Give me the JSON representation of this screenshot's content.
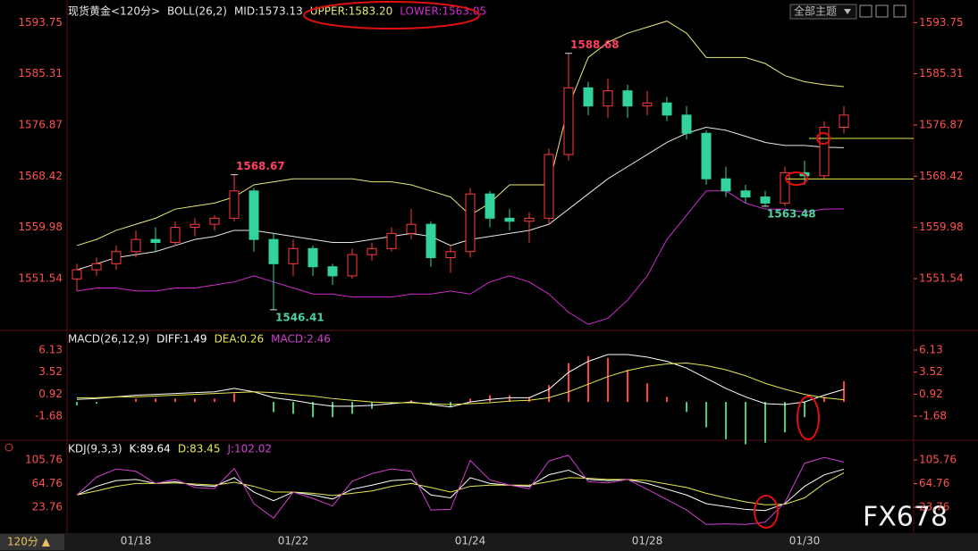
{
  "chart_data": [
    {
      "type": "candlestick",
      "title": "现货黄金<120分>",
      "indicator": "BOLL(26,2)",
      "categories": [
        null,
        null,
        null,
        "01/18",
        null,
        null,
        null,
        null,
        null,
        null,
        null,
        "01/22",
        null,
        null,
        null,
        null,
        null,
        null,
        null,
        null,
        "01/24",
        null,
        null,
        null,
        null,
        null,
        null,
        null,
        null,
        "01/28",
        null,
        null,
        null,
        null,
        null,
        null,
        null,
        "01/30",
        null,
        null
      ],
      "open": [
        1551.5,
        1553,
        1554,
        1556,
        1558,
        1557.5,
        1560,
        1560.5,
        1561.5,
        1566,
        1558,
        1554,
        1556.5,
        1553.5,
        1552,
        1555.5,
        1556.5,
        1559,
        1560.5,
        1555,
        1556,
        1565.5,
        1561.5,
        1561,
        1561.5,
        1572,
        1583,
        1580,
        1582.5,
        1580,
        1580.5,
        1578.5,
        1575.5,
        1568,
        1566,
        1565,
        1564,
        1569,
        1568.5,
        1576.5
      ],
      "high": [
        1554,
        1555,
        1557,
        1559.5,
        1560,
        1561,
        1561.5,
        1562,
        1568.67,
        1566.5,
        1559,
        1558,
        1557,
        1554,
        1556.5,
        1557.5,
        1560,
        1563,
        1561,
        1557,
        1566.5,
        1566,
        1563,
        1562.5,
        1573,
        1588.68,
        1584,
        1584.5,
        1583.5,
        1582.5,
        1581.5,
        1580,
        1576,
        1570,
        1567,
        1566,
        1570,
        1571,
        1577.5,
        1580
      ],
      "low": [
        1549.5,
        1552,
        1553,
        1555,
        1556,
        1557,
        1558.5,
        1559.5,
        1561,
        1556,
        1546.41,
        1552,
        1552,
        1550.5,
        1551.5,
        1554.5,
        1556,
        1558,
        1553.5,
        1552.5,
        1555,
        1560,
        1559.5,
        1557.5,
        1560.5,
        1571,
        1578.5,
        1578,
        1578,
        1578.5,
        1577.5,
        1574.5,
        1567,
        1565,
        1564,
        1563.48,
        1563.5,
        1567,
        1568,
        1575.5
      ],
      "close": [
        1553,
        1554,
        1556,
        1558,
        1557.5,
        1560,
        1560.5,
        1561.5,
        1566,
        1558,
        1554,
        1556.5,
        1553.5,
        1552,
        1555.5,
        1556.5,
        1559,
        1560.5,
        1555,
        1556,
        1565.5,
        1561.5,
        1561,
        1561.5,
        1572,
        1583,
        1580,
        1582.5,
        1580,
        1580.5,
        1578.5,
        1575.5,
        1568,
        1566,
        1565,
        1564,
        1569,
        1568.5,
        1576.5,
        1578.5
      ],
      "up_color": "#ff3c3c",
      "down_color": "#33d3a0",
      "series": [
        {
          "name": "MID:1573.13",
          "color": "#e8e8e8",
          "values": [
            1553,
            1554,
            1555,
            1555.5,
            1556,
            1557,
            1558,
            1558.5,
            1559.5,
            1559.5,
            1559,
            1558.5,
            1558,
            1557.5,
            1557.5,
            1558,
            1558.5,
            1559,
            1558.5,
            1557,
            1558,
            1558.5,
            1559,
            1559.5,
            1560.5,
            1563,
            1565.5,
            1568,
            1570,
            1572,
            1574,
            1575.5,
            1576.5,
            1576,
            1575,
            1574,
            1573.5,
            1573.5,
            1573.2,
            1573.13
          ]
        },
        {
          "name": "UPPER:1583.20",
          "color": "#e8e878",
          "values": [
            1557,
            1558,
            1559.5,
            1560.5,
            1561.5,
            1563,
            1563.5,
            1564,
            1565,
            1567,
            1567.5,
            1568,
            1568,
            1568,
            1568,
            1567.5,
            1567.5,
            1567,
            1566,
            1565,
            1562,
            1564,
            1567,
            1567,
            1567,
            1580,
            1588,
            1590.5,
            1592,
            1593,
            1594,
            1592,
            1588,
            1588,
            1588,
            1587,
            1585,
            1584,
            1583.5,
            1583.2
          ]
        },
        {
          "name": "LOWER:1563.05",
          "color": "#d02cd0",
          "values": [
            1549.5,
            1550,
            1550,
            1549.5,
            1549.5,
            1550,
            1550,
            1550.5,
            1551,
            1552,
            1551,
            1550,
            1549,
            1549,
            1548.5,
            1548.5,
            1548.5,
            1549,
            1549,
            1549.5,
            1549,
            1551,
            1552,
            1551,
            1549,
            1546,
            1544,
            1545,
            1548,
            1552,
            1558,
            1562,
            1566,
            1566,
            1564,
            1563,
            1563,
            1562.5,
            1563,
            1563.05
          ]
        }
      ],
      "annotations": [
        1588.68,
        1568.67,
        1546.41,
        1563.48
      ],
      "levels": [
        1574.66,
        1567.98
      ],
      "level_color": "#e8e850",
      "ylim": [
        1543.3,
        1596
      ],
      "yticks": [
        1593.75,
        1585.31,
        1576.87,
        1568.42,
        1559.98,
        1551.54
      ]
    },
    {
      "type": "macd",
      "title": "MACD(26,12,9)",
      "up_color": "#ff4040",
      "down_color": "#40d080",
      "series": [
        {
          "name": "DIFF:1.49",
          "color": "#ffffff",
          "values": [
            0.3,
            0.4,
            0.6,
            0.8,
            0.9,
            1.0,
            1.1,
            1.2,
            1.6,
            1.2,
            0.5,
            0.2,
            -0.2,
            -0.5,
            -0.5,
            -0.4,
            -0.2,
            0.0,
            -0.3,
            -0.6,
            0.0,
            0.3,
            0.5,
            0.5,
            1.5,
            3.5,
            4.8,
            5.6,
            5.6,
            5.3,
            4.8,
            4.0,
            2.8,
            1.6,
            0.6,
            -0.2,
            -0.3,
            0.0,
            0.8,
            1.49
          ]
        },
        {
          "name": "DEA:0.26",
          "color": "#e8e850",
          "values": [
            0.5,
            0.5,
            0.6,
            0.6,
            0.7,
            0.8,
            0.9,
            1.0,
            1.1,
            1.2,
            1.1,
            0.9,
            0.7,
            0.4,
            0.2,
            0.0,
            -0.1,
            -0.1,
            -0.2,
            -0.3,
            -0.2,
            -0.1,
            0.1,
            0.2,
            0.5,
            1.2,
            2.1,
            3.0,
            3.7,
            4.2,
            4.5,
            4.6,
            4.3,
            3.8,
            3.1,
            2.2,
            1.5,
            0.9,
            0.5,
            0.26
          ]
        },
        {
          "name": "MACD:2.46",
          "color": "#d040d0",
          "values": [
            -0.4,
            -0.2,
            0,
            0.4,
            0.4,
            0.4,
            0.4,
            0.4,
            1.0,
            0,
            -1.2,
            -1.4,
            -1.8,
            -1.8,
            -1.4,
            -0.8,
            -0.2,
            0.2,
            -0.2,
            -0.6,
            0.4,
            0.8,
            0.8,
            0.6,
            2.0,
            4.6,
            5.4,
            5.2,
            3.8,
            2.2,
            0.6,
            -1.2,
            -3.0,
            -4.4,
            -5.0,
            -4.8,
            -3.6,
            -1.8,
            0.6,
            2.46
          ]
        }
      ],
      "ylim": [
        -4.42,
        8.24
      ],
      "yticks": [
        6.13,
        3.52,
        0.92,
        -1.68
      ]
    },
    {
      "type": "line",
      "title": "KDJ(9,3,3)",
      "series": [
        {
          "name": "K:89.64",
          "color": "#ffffff",
          "values": [
            45,
            60,
            70,
            72,
            65,
            68,
            62,
            60,
            75,
            50,
            35,
            50,
            45,
            38,
            55,
            62,
            70,
            72,
            45,
            40,
            75,
            65,
            62,
            60,
            80,
            88,
            72,
            70,
            72,
            65,
            55,
            45,
            30,
            25,
            20,
            18,
            30,
            60,
            80,
            89.64
          ]
        },
        {
          "name": "D:83.45",
          "color": "#e8e850",
          "values": [
            45,
            52,
            60,
            65,
            65,
            66,
            64,
            62,
            67,
            60,
            50,
            50,
            48,
            44,
            48,
            52,
            60,
            65,
            58,
            50,
            60,
            62,
            62,
            62,
            68,
            75,
            74,
            72,
            72,
            70,
            64,
            58,
            48,
            40,
            33,
            28,
            29,
            40,
            65,
            83.45
          ]
        },
        {
          "name": "J:102.02",
          "color": "#d040d0",
          "values": [
            45,
            76,
            90,
            86,
            65,
            72,
            58,
            56,
            91,
            30,
            5,
            50,
            39,
            26,
            69,
            82,
            90,
            86,
            19,
            20,
            105,
            71,
            62,
            56,
            104,
            114,
            68,
            66,
            72,
            55,
            37,
            19,
            -6,
            -5,
            -6,
            -2,
            32,
            100,
            110,
            102.02
          ]
        }
      ],
      "ylim": [
        -18,
        136.7
      ],
      "yticks": [
        105.76,
        64.76,
        23.76
      ]
    }
  ],
  "ui": {
    "theme_button": "全部主题",
    "period": "120分 ▲",
    "watermark": "FX678"
  }
}
